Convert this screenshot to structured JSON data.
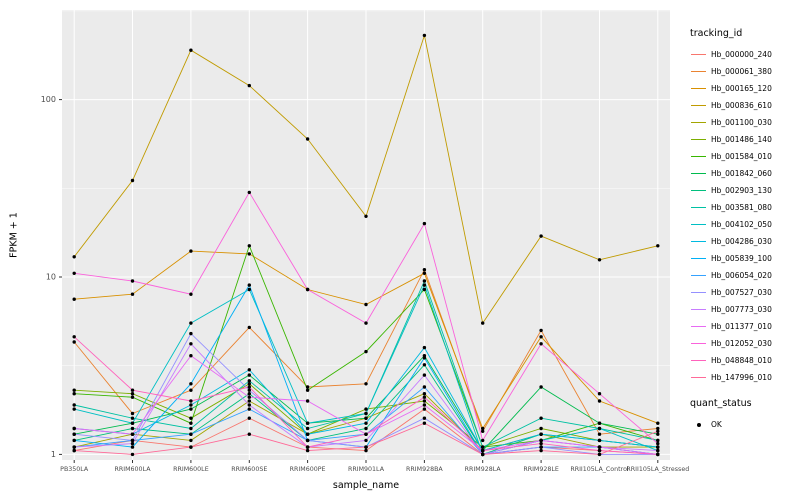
{
  "figure": {
    "y_axis_title": "FPKM + 1",
    "x_axis_title": "sample_name",
    "panel_bg": "#EBEBEB",
    "grid_color": "#FFFFFF",
    "tick_label_color": "#4D4D4D",
    "y_ticks": [
      1,
      10,
      100
    ],
    "y_tick_labels": [
      "1",
      "10",
      "100"
    ],
    "y_minor_gridlines": [
      3.1623,
      31.623,
      316.23
    ],
    "legend": {
      "tracking_title": "tracking_id",
      "quant_title": "quant_status",
      "quant_label": "OK"
    }
  },
  "chart_data": {
    "type": "line",
    "title": "",
    "xlabel": "sample_name",
    "ylabel": "FPKM + 1",
    "y_scale": "log10",
    "ylim": [
      0.93,
      320
    ],
    "legend_position": "right",
    "grid": true,
    "point_color": "#000000",
    "point_shape": "circle",
    "quant_status": "OK",
    "categories": [
      "PB350LA",
      "RRIM600LA",
      "RRIM600LE",
      "RRIM600SE",
      "RRIM600PE",
      "RRIM901LA",
      "RRIM928BA",
      "RRIM928LA",
      "RRIM928LE",
      "RRII105LA_Control",
      "RRII105LA_Stressed"
    ],
    "series": [
      {
        "name": "Hb_000000_240",
        "color": "#F8766D",
        "values": [
          1.05,
          1.2,
          1.1,
          1.6,
          1.1,
          1.05,
          1.8,
          1.0,
          1.1,
          1.05,
          1.0
        ]
      },
      {
        "name": "Hb_000061_380",
        "color": "#EA8331",
        "values": [
          4.3,
          1.7,
          2.3,
          5.2,
          2.4,
          2.5,
          11.0,
          1.35,
          5.0,
          1.3,
          1.4
        ]
      },
      {
        "name": "Hb_000165_120",
        "color": "#D89000",
        "values": [
          7.5,
          8.0,
          14.0,
          13.5,
          8.5,
          7.0,
          10.5,
          1.4,
          4.6,
          2.0,
          1.5
        ]
      },
      {
        "name": "Hb_000836_610",
        "color": "#C09B00",
        "values": [
          13.0,
          35.0,
          190.0,
          120.0,
          60.0,
          22.0,
          230.0,
          5.5,
          17.0,
          12.5,
          15.0
        ]
      },
      {
        "name": "Hb_001100_030",
        "color": "#A3A500",
        "values": [
          1.1,
          1.3,
          1.2,
          2.0,
          1.3,
          1.6,
          2.2,
          1.05,
          1.3,
          1.1,
          1.1
        ]
      },
      {
        "name": "Hb_001486_140",
        "color": "#7CAE00",
        "values": [
          2.3,
          2.2,
          1.6,
          2.5,
          1.3,
          1.8,
          2.0,
          1.1,
          1.4,
          1.2,
          1.1
        ]
      },
      {
        "name": "Hb_001584_010",
        "color": "#39B600",
        "values": [
          2.2,
          2.1,
          1.5,
          15.0,
          2.3,
          3.8,
          8.5,
          1.1,
          1.2,
          1.5,
          1.2
        ]
      },
      {
        "name": "Hb_001842_060",
        "color": "#00BB4E",
        "values": [
          1.3,
          1.5,
          1.8,
          2.8,
          1.5,
          1.6,
          3.6,
          1.05,
          2.4,
          1.5,
          1.3
        ]
      },
      {
        "name": "Hb_002903_130",
        "color": "#00BF7D",
        "values": [
          1.2,
          1.4,
          1.3,
          2.2,
          1.2,
          1.4,
          3.2,
          1.0,
          1.3,
          1.2,
          1.1
        ]
      },
      {
        "name": "Hb_003581_080",
        "color": "#00C1A3",
        "values": [
          1.9,
          1.6,
          1.4,
          2.6,
          1.4,
          1.7,
          9.5,
          1.1,
          1.6,
          1.4,
          1.2
        ]
      },
      {
        "name": "Hb_004102_050",
        "color": "#00BFC4",
        "values": [
          1.8,
          1.5,
          5.5,
          8.5,
          1.5,
          1.7,
          9.0,
          1.0,
          1.2,
          1.4,
          1.05
        ]
      },
      {
        "name": "Hb_004286_030",
        "color": "#00BAE0",
        "values": [
          1.4,
          1.3,
          1.9,
          3.0,
          1.3,
          1.5,
          4.0,
          1.05,
          1.3,
          1.2,
          1.1
        ]
      },
      {
        "name": "Hb_005839_100",
        "color": "#00B0F6",
        "values": [
          1.2,
          1.1,
          2.5,
          9.0,
          1.2,
          1.1,
          3.5,
          1.0,
          1.2,
          1.1,
          1.0
        ]
      },
      {
        "name": "Hb_006054_020",
        "color": "#35A2FF",
        "values": [
          1.1,
          1.2,
          1.3,
          1.8,
          1.2,
          1.3,
          2.4,
          1.0,
          1.1,
          1.1,
          1.0
        ]
      },
      {
        "name": "Hb_007527_030",
        "color": "#9590FF",
        "values": [
          1.3,
          1.2,
          4.8,
          2.3,
          1.2,
          1.1,
          1.6,
          1.0,
          1.1,
          1.0,
          1.0
        ]
      },
      {
        "name": "Hb_007773_030",
        "color": "#C77CFF",
        "values": [
          1.1,
          1.15,
          4.2,
          1.9,
          1.1,
          1.2,
          2.8,
          1.0,
          1.2,
          1.1,
          1.05
        ]
      },
      {
        "name": "Hb_011377_010",
        "color": "#E76BF3",
        "values": [
          1.4,
          1.3,
          3.6,
          2.1,
          2.0,
          1.3,
          1.9,
          1.05,
          1.2,
          1.1,
          1.0
        ]
      },
      {
        "name": "Hb_012052_030",
        "color": "#FA62DB",
        "values": [
          10.5,
          9.5,
          8.0,
          30.0,
          8.5,
          5.5,
          20.0,
          1.2,
          4.2,
          2.2,
          1.15
        ]
      },
      {
        "name": "Hb_048848_010",
        "color": "#FF62BC",
        "values": [
          4.6,
          2.3,
          2.0,
          2.4,
          1.1,
          1.3,
          2.1,
          1.05,
          1.15,
          1.05,
          1.0
        ]
      },
      {
        "name": "Hb_147996_010",
        "color": "#FF6A98",
        "values": [
          1.05,
          1.0,
          1.1,
          1.3,
          1.05,
          1.1,
          1.5,
          1.0,
          1.05,
          1.0,
          1.35
        ]
      }
    ]
  }
}
